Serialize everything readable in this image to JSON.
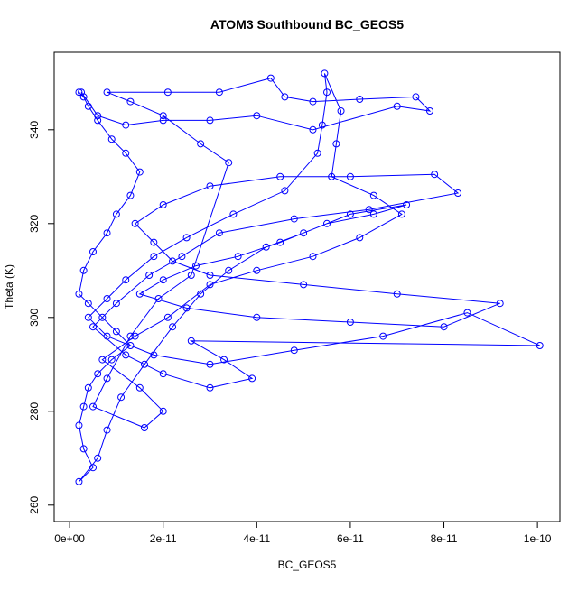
{
  "chart_data": {
    "type": "line",
    "title": "ATOM3 Southbound BC_GEOS5",
    "x_label": "BC_GEOS5",
    "y_label": "Theta (K)",
    "color": "#0000ff",
    "marker": "circle",
    "xlim": [
      -3.3e-12,
      1.048e-10
    ],
    "ylim": [
      256.5,
      356.5
    ],
    "xticks": [
      {
        "value": 0,
        "label": "0e+00"
      },
      {
        "value": 2e-11,
        "label": "2e-11"
      },
      {
        "value": 4e-11,
        "label": "4e-11"
      },
      {
        "value": 6e-11,
        "label": "6e-11"
      },
      {
        "value": 8e-11,
        "label": "8e-11"
      },
      {
        "value": 1e-10,
        "label": "1e-10"
      }
    ],
    "yticks": [
      260,
      280,
      300,
      320,
      340
    ],
    "x": [
      2e-12,
      3e-12,
      4e-12,
      6e-12,
      9e-12,
      1.2e-11,
      1.5e-11,
      1.3e-11,
      1e-11,
      8e-12,
      5e-12,
      3e-12,
      2e-12,
      4e-12,
      7e-12,
      1e-11,
      1.3e-11,
      9e-12,
      6e-12,
      4e-12,
      3e-12,
      2e-12,
      3e-12,
      5e-12,
      2e-12,
      6e-12,
      8e-12,
      1.1e-11,
      1.6e-11,
      2.2e-11,
      2.8e-11,
      3.4e-11,
      4.2e-11,
      5e-11,
      6e-11,
      7.2e-11,
      6.5e-11,
      5.5e-11,
      4.5e-11,
      3.6e-11,
      2.7e-11,
      2e-11,
      1.5e-11,
      2.5e-11,
      4e-11,
      6e-11,
      8e-11,
      9.2e-11,
      7e-11,
      5e-11,
      3e-11,
      2.2e-11,
      1.8e-11,
      1.4e-11,
      2e-11,
      3e-11,
      4.5e-11,
      6e-11,
      7.8e-11,
      8.3e-11,
      6.4e-11,
      4.8e-11,
      3.2e-11,
      2.4e-11,
      1.7e-11,
      1e-11,
      5e-12,
      1.2e-11,
      2e-11,
      3e-11,
      3.9e-11,
      3.3e-11,
      2.6e-11,
      1.005e-10,
      8.5e-11,
      6.7e-11,
      4.8e-11,
      3e-11,
      1.8e-11,
      8e-12,
      4e-12,
      8e-12,
      1.2e-11,
      1.8e-11,
      2.5e-11,
      3.5e-11,
      4.6e-11,
      5.3e-11,
      5.4e-11,
      5.5e-11,
      5.45e-11,
      5.8e-11,
      5.7e-11,
      5.6e-11,
      6.5e-11,
      7.1e-11,
      6.2e-11,
      5.2e-11,
      4e-11,
      3e-11,
      2.1e-11,
      1.4e-11,
      7e-12,
      1.5e-11,
      2e-11,
      1.6e-11,
      5e-12,
      8e-12,
      1.3e-11,
      1.9e-11,
      2.6e-11,
      3.4e-11,
      2.8e-11,
      2e-11,
      1.3e-11,
      8e-12,
      2.1e-11,
      3.2e-11,
      4.3e-11,
      4.6e-11,
      5.2e-11,
      6.2e-11,
      7.4e-11,
      7.7e-11,
      7e-11,
      5.2e-11,
      4e-11,
      3e-11,
      2e-11,
      1.2e-11,
      6e-12,
      2.5e-12
    ],
    "values": [
      348,
      347,
      345,
      342,
      338,
      335,
      331,
      326,
      322,
      318,
      314,
      310,
      305,
      303,
      300,
      297,
      294,
      291,
      288,
      285,
      281,
      277,
      272,
      268,
      265,
      270,
      276,
      283,
      290,
      298,
      305,
      310,
      315,
      318,
      322,
      324,
      322,
      320,
      316,
      313,
      311,
      308,
      305,
      302,
      300,
      299,
      298,
      303,
      305,
      307,
      309,
      312,
      316,
      320,
      324,
      328,
      330,
      330,
      330.5,
      326.5,
      323,
      321,
      318,
      313,
      309,
      303,
      298,
      292,
      288,
      285,
      287,
      291,
      295,
      294,
      301,
      296,
      293,
      290,
      292,
      296,
      300,
      304,
      308,
      313,
      317,
      322,
      327,
      335,
      341,
      348,
      352,
      344,
      337,
      330,
      326,
      322,
      317,
      313,
      310,
      307,
      300,
      296,
      291,
      285,
      280,
      276.5,
      281,
      287,
      296,
      304,
      309,
      333,
      337,
      343,
      346,
      348,
      348,
      348,
      351,
      347,
      346,
      346.5,
      347,
      344,
      345,
      340,
      343,
      342,
      342,
      341,
      343,
      348
    ]
  }
}
